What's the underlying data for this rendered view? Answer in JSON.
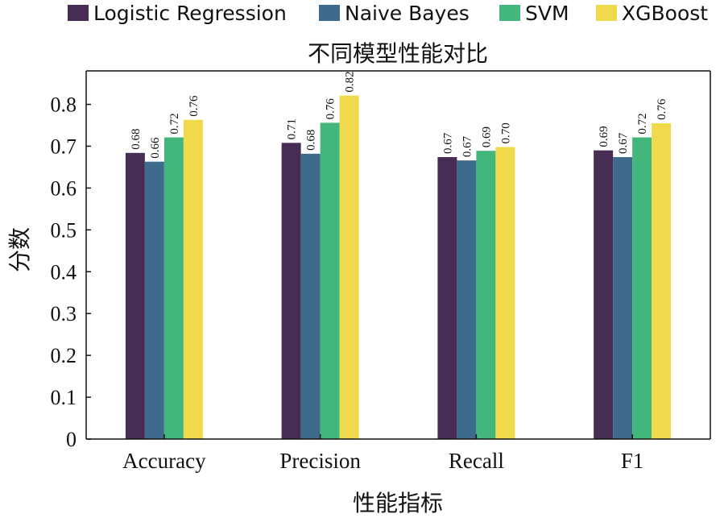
{
  "chart_data": {
    "type": "bar",
    "title": "不同模型性能对比",
    "xlabel": "性能指标",
    "ylabel": "分数",
    "categories": [
      "Accuracy",
      "Precision",
      "Recall",
      "F1"
    ],
    "series": [
      {
        "name": "Logistic Regression",
        "color": "#472d54",
        "values": [
          0.684,
          0.708,
          0.674,
          0.69
        ],
        "labels": [
          "0.68",
          "0.71",
          "0.67",
          "0.69"
        ]
      },
      {
        "name": "Naive Bayes",
        "color": "#3e6a8c",
        "values": [
          0.663,
          0.682,
          0.666,
          0.674
        ],
        "labels": [
          "0.66",
          "0.68",
          "0.67",
          "0.67"
        ]
      },
      {
        "name": "SVM",
        "color": "#43b77b",
        "values": [
          0.721,
          0.756,
          0.689,
          0.721
        ],
        "labels": [
          "0.72",
          "0.76",
          "0.69",
          "0.72"
        ]
      },
      {
        "name": "XGBoost",
        "color": "#f0d94a",
        "values": [
          0.763,
          0.821,
          0.698,
          0.755
        ],
        "labels": [
          "0.76",
          "0.82",
          "0.70",
          "0.76"
        ]
      }
    ],
    "yticks": [
      "0",
      "0.1",
      "0.2",
      "0.3",
      "0.4",
      "0.5",
      "0.6",
      "0.7",
      "0.8"
    ],
    "ylim": [
      0,
      0.88
    ],
    "grid": false,
    "legend_position": "top"
  }
}
